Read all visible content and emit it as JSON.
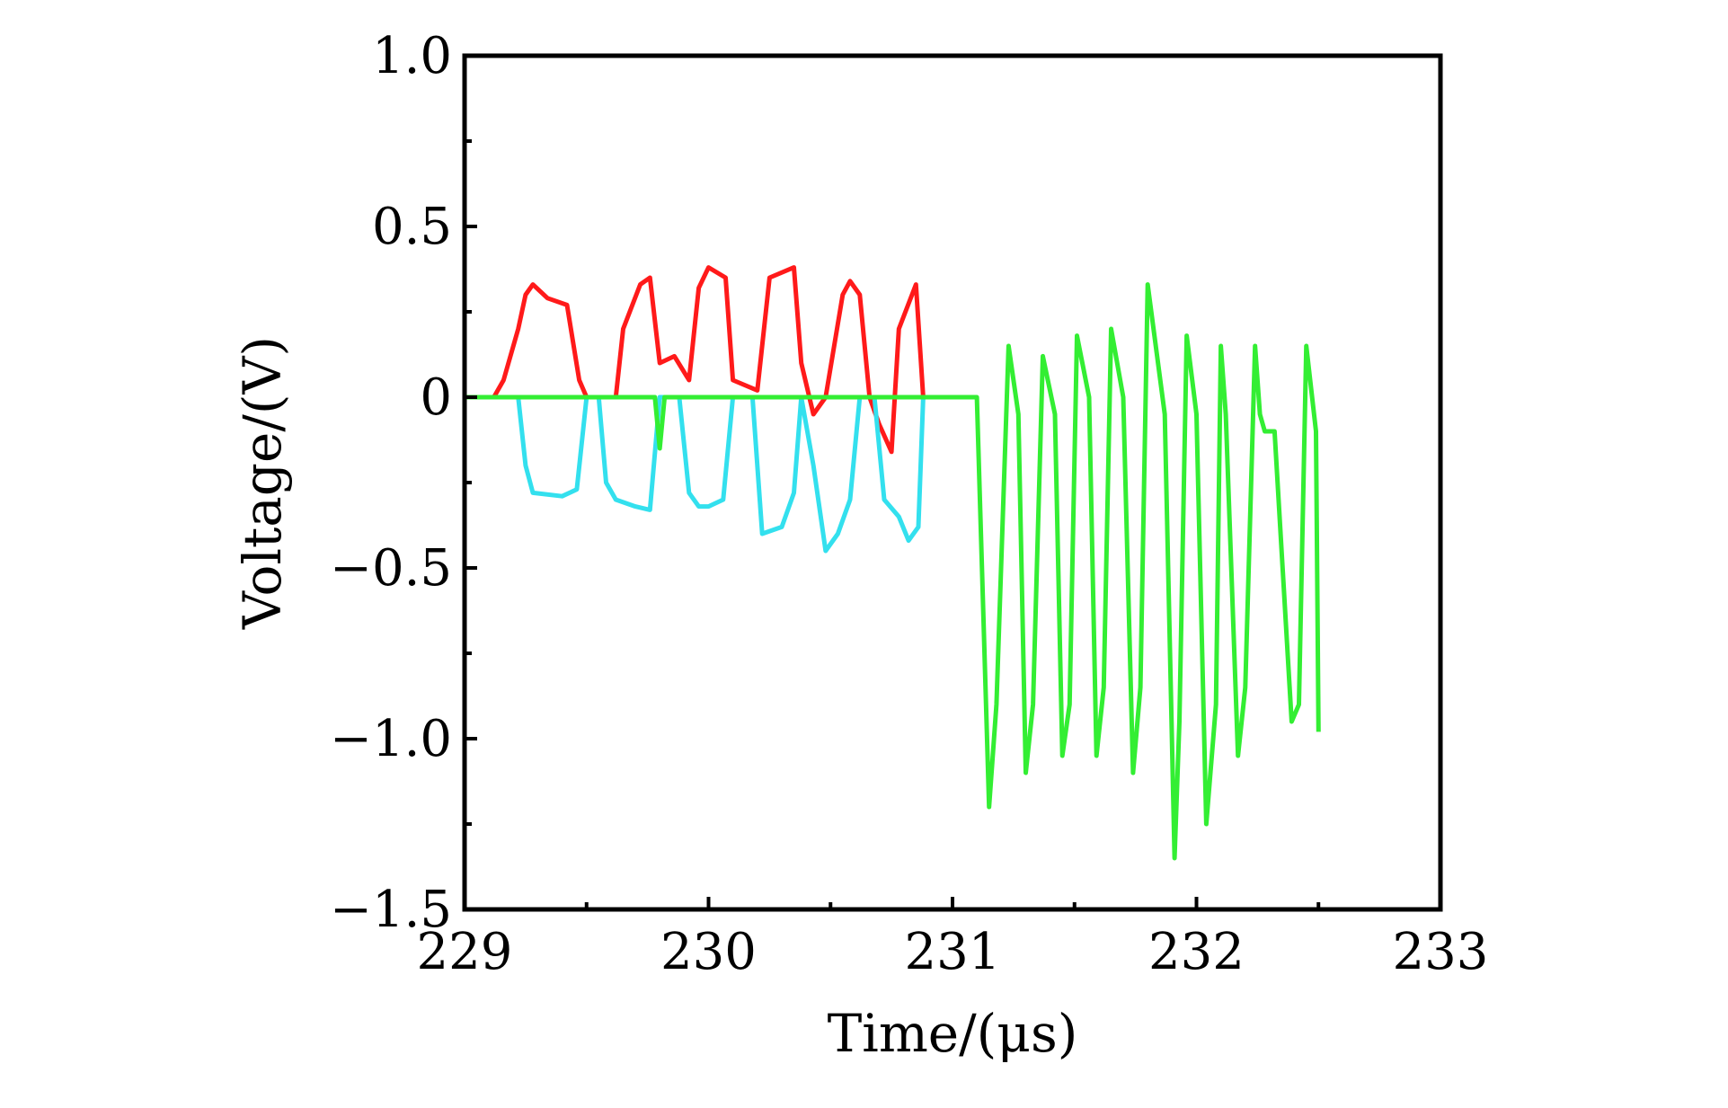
{
  "chart_data": {
    "type": "line",
    "title": "",
    "xlabel": "Time/(μs)",
    "ylabel": "Voltage/(V)",
    "xlim": [
      229,
      233
    ],
    "ylim": [
      -1.5,
      1.0
    ],
    "xticks": [
      229,
      230,
      231,
      232,
      233
    ],
    "xtick_labels": [
      "229",
      "230",
      "231",
      "232",
      "233"
    ],
    "yticks": [
      1.0,
      0.5,
      0,
      -0.5,
      -1.0,
      -1.5
    ],
    "ytick_labels": [
      "1.0",
      "0.5",
      "0",
      "−0.5",
      "−1.0",
      "−1.5"
    ],
    "grid": false,
    "legend": "none",
    "series": [
      {
        "name": "red-trace",
        "color": "#ff1a1a",
        "x": [
          229.0,
          229.12,
          229.16,
          229.22,
          229.25,
          229.28,
          229.34,
          229.42,
          229.47,
          229.5,
          229.62,
          229.65,
          229.72,
          229.76,
          229.8,
          229.86,
          229.92,
          229.96,
          230.0,
          230.07,
          230.1,
          230.2,
          230.25,
          230.35,
          230.38,
          230.43,
          230.48,
          230.55,
          230.58,
          230.62,
          230.66,
          230.7,
          230.75,
          230.78,
          230.85,
          230.88
        ],
        "y": [
          0.0,
          0.0,
          0.05,
          0.2,
          0.3,
          0.33,
          0.29,
          0.27,
          0.05,
          0.0,
          0.0,
          0.2,
          0.33,
          0.35,
          0.1,
          0.12,
          0.05,
          0.32,
          0.38,
          0.35,
          0.05,
          0.02,
          0.35,
          0.38,
          0.1,
          -0.05,
          0.0,
          0.3,
          0.34,
          0.3,
          0.0,
          -0.08,
          -0.16,
          0.2,
          0.33,
          0.0
        ]
      },
      {
        "name": "cyan-trace",
        "color": "#33e0ee",
        "x": [
          229.0,
          229.22,
          229.25,
          229.28,
          229.4,
          229.46,
          229.5,
          229.55,
          229.58,
          229.62,
          229.7,
          229.76,
          229.8,
          229.88,
          229.92,
          229.96,
          230.0,
          230.06,
          230.1,
          230.18,
          230.22,
          230.3,
          230.35,
          230.38,
          230.43,
          230.48,
          230.53,
          230.58,
          230.62,
          230.68,
          230.72,
          230.78,
          230.82,
          230.86,
          230.88
        ],
        "y": [
          0.0,
          0.0,
          -0.2,
          -0.28,
          -0.29,
          -0.27,
          0.0,
          0.0,
          -0.25,
          -0.3,
          -0.32,
          -0.33,
          0.0,
          0.0,
          -0.28,
          -0.32,
          -0.32,
          -0.3,
          0.0,
          0.0,
          -0.4,
          -0.38,
          -0.28,
          0.0,
          -0.2,
          -0.45,
          -0.4,
          -0.3,
          0.0,
          0.0,
          -0.3,
          -0.35,
          -0.42,
          -0.38,
          0.0
        ]
      },
      {
        "name": "green-trace",
        "color": "#33ee33",
        "x": [
          229.0,
          229.78,
          229.8,
          229.82,
          231.1,
          231.15,
          231.18,
          231.23,
          231.27,
          231.3,
          231.33,
          231.37,
          231.42,
          231.45,
          231.48,
          231.51,
          231.56,
          231.59,
          231.62,
          231.65,
          231.7,
          231.74,
          231.77,
          231.8,
          231.87,
          231.91,
          231.93,
          231.96,
          232.0,
          232.04,
          232.08,
          232.1,
          232.12,
          232.17,
          232.2,
          232.24,
          232.26,
          232.28,
          232.32,
          232.39,
          232.42,
          232.45,
          232.49,
          232.5
        ],
        "y": [
          0.0,
          0.0,
          -0.15,
          0.0,
          0.0,
          -1.2,
          -0.9,
          0.15,
          -0.05,
          -1.1,
          -0.9,
          0.12,
          -0.05,
          -1.05,
          -0.9,
          0.18,
          0.0,
          -1.05,
          -0.85,
          0.2,
          0.0,
          -1.1,
          -0.85,
          0.33,
          -0.05,
          -1.35,
          -0.95,
          0.18,
          -0.05,
          -1.25,
          -0.9,
          0.15,
          -0.05,
          -1.05,
          -0.85,
          0.15,
          -0.05,
          -0.1,
          -0.1,
          -0.95,
          -0.9,
          0.15,
          -0.1,
          -0.98
        ]
      }
    ]
  }
}
